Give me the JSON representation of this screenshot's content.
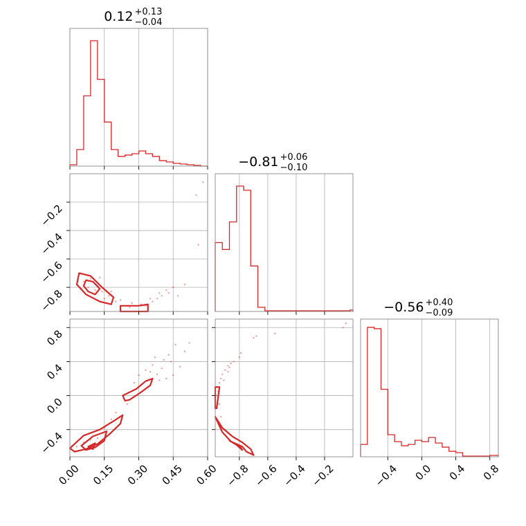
{
  "chart_data": {
    "type": "corner",
    "color": "#d62728",
    "parameters": [
      {
        "title_value": "0.12",
        "title_plus": "+0.13",
        "title_minus": "−0.04",
        "range": [
          0.0,
          0.6
        ],
        "ticks": [
          0.0,
          0.15,
          0.3,
          0.45,
          0.6
        ],
        "tick_labels": [
          "0.00",
          "0.15",
          "0.30",
          "0.45",
          "0.60"
        ],
        "hist_bin_edges": [
          0.0,
          0.03,
          0.06,
          0.09,
          0.12,
          0.15,
          0.18,
          0.21,
          0.24,
          0.27,
          0.3,
          0.33,
          0.36,
          0.39,
          0.42,
          0.45,
          0.48,
          0.51,
          0.54,
          0.57,
          0.6
        ],
        "hist_heights": [
          0.01,
          0.12,
          0.51,
          0.91,
          0.63,
          0.32,
          0.12,
          0.07,
          0.08,
          0.09,
          0.11,
          0.09,
          0.07,
          0.04,
          0.03,
          0.02,
          0.015,
          0.01,
          0.005,
          0.0
        ]
      },
      {
        "title_value": "−0.81",
        "title_plus": "+0.06",
        "title_minus": "−0.10",
        "range": [
          -0.97,
          0.0
        ],
        "ticks": [
          -0.8,
          -0.6,
          -0.4,
          -0.2
        ],
        "tick_labels": [
          "−0.8",
          "−0.6",
          "−0.4",
          "−0.2"
        ],
        "hist_bin_edges": [
          -0.97,
          -0.92,
          -0.87,
          -0.82,
          -0.77,
          -0.72,
          -0.67,
          -0.62,
          -0.57,
          -0.52,
          -0.47,
          -0.42,
          -0.37,
          -0.32,
          -0.27,
          -0.22,
          -0.17,
          -0.12,
          -0.07,
          -0.02,
          0.0
        ],
        "hist_heights": [
          0.5,
          0.45,
          0.65,
          0.91,
          0.88,
          0.33,
          0.03,
          0.005,
          0.005,
          0.005,
          0.005,
          0.005,
          0.005,
          0.005,
          0.005,
          0.005,
          0.005,
          0.005,
          0.005,
          0.01
        ]
      },
      {
        "title_value": "−0.56",
        "title_plus": "+0.40",
        "title_minus": "−0.09",
        "range": [
          -0.72,
          0.9
        ],
        "ticks": [
          -0.4,
          0.0,
          0.4,
          0.8
        ],
        "tick_labels": [
          "−0.4",
          "0.0",
          "0.4",
          "0.8"
        ],
        "hist_bin_edges": [
          -0.72,
          -0.64,
          -0.56,
          -0.48,
          -0.4,
          -0.32,
          -0.24,
          -0.16,
          -0.08,
          0.0,
          0.08,
          0.16,
          0.24,
          0.32,
          0.4,
          0.48,
          0.56,
          0.64,
          0.72,
          0.8,
          0.9
        ],
        "hist_heights": [
          0.09,
          0.94,
          0.93,
          0.49,
          0.16,
          0.11,
          0.08,
          0.09,
          0.12,
          0.11,
          0.14,
          0.1,
          0.07,
          0.04,
          0.03,
          0.005,
          0.005,
          0.005,
          0.005,
          0.01
        ]
      }
    ],
    "pairs": [
      {
        "x_param": 0,
        "y_param": 1,
        "contours": [
          {
            "level": "outer",
            "points": [
              [
                0.04,
                -0.7
              ],
              [
                0.09,
                -0.72
              ],
              [
                0.14,
                -0.8
              ],
              [
                0.19,
                -0.87
              ],
              [
                0.18,
                -0.92
              ],
              [
                0.13,
                -0.9
              ],
              [
                0.07,
                -0.85
              ],
              [
                0.03,
                -0.78
              ]
            ]
          },
          {
            "level": "inner",
            "points": [
              [
                0.07,
                -0.75
              ],
              [
                0.1,
                -0.76
              ],
              [
                0.13,
                -0.81
              ],
              [
                0.11,
                -0.85
              ],
              [
                0.08,
                -0.83
              ],
              [
                0.06,
                -0.79
              ]
            ]
          },
          {
            "level": "outer",
            "points": [
              [
                0.22,
                -0.93
              ],
              [
                0.3,
                -0.93
              ],
              [
                0.34,
                -0.92
              ],
              [
                0.34,
                -0.97
              ],
              [
                0.22,
                -0.97
              ]
            ]
          }
        ],
        "samples": [
          [
            0.09,
            -0.74
          ],
          [
            0.12,
            -0.79
          ],
          [
            0.06,
            -0.76
          ],
          [
            0.14,
            -0.83
          ],
          [
            0.17,
            -0.86
          ],
          [
            0.11,
            -0.82
          ],
          [
            0.08,
            -0.8
          ],
          [
            0.15,
            -0.88
          ],
          [
            0.2,
            -0.9
          ],
          [
            0.26,
            -0.94
          ],
          [
            0.31,
            -0.92
          ],
          [
            0.36,
            -0.9
          ],
          [
            0.4,
            -0.86
          ],
          [
            0.43,
            -0.84
          ],
          [
            0.45,
            -0.8
          ],
          [
            0.38,
            -0.88
          ],
          [
            0.33,
            -0.93
          ],
          [
            0.42,
            -0.82
          ],
          [
            0.5,
            -0.78
          ],
          [
            0.56,
            -0.5
          ],
          [
            0.55,
            -0.15
          ],
          [
            0.58,
            -0.06
          ],
          [
            0.05,
            -0.81
          ],
          [
            0.13,
            -0.73
          ],
          [
            0.18,
            -0.83
          ],
          [
            0.22,
            -0.89
          ],
          [
            0.27,
            -0.91
          ],
          [
            0.35,
            -0.88
          ],
          [
            0.39,
            -0.84
          ],
          [
            0.47,
            -0.86
          ]
        ]
      },
      {
        "x_param": 0,
        "y_param": 2,
        "contours": [
          {
            "level": "outer",
            "points": [
              [
                0.0,
                -0.62
              ],
              [
                0.06,
                -0.47
              ],
              [
                0.13,
                -0.4
              ],
              [
                0.19,
                -0.3
              ],
              [
                0.23,
                -0.23
              ],
              [
                0.22,
                -0.33
              ],
              [
                0.17,
                -0.46
              ],
              [
                0.12,
                -0.57
              ],
              [
                0.07,
                -0.63
              ],
              [
                0.02,
                -0.66
              ]
            ]
          },
          {
            "level": "inner",
            "points": [
              [
                0.05,
                -0.59
              ],
              [
                0.1,
                -0.48
              ],
              [
                0.16,
                -0.42
              ],
              [
                0.15,
                -0.53
              ],
              [
                0.11,
                -0.61
              ],
              [
                0.07,
                -0.64
              ]
            ]
          },
          {
            "level": "inner",
            "points": [
              [
                0.08,
                -0.6
              ],
              [
                0.11,
                -0.56
              ],
              [
                0.1,
                -0.63
              ]
            ]
          },
          {
            "level": "outer",
            "points": [
              [
                0.23,
                0.0
              ],
              [
                0.29,
                0.08
              ],
              [
                0.33,
                0.17
              ],
              [
                0.36,
                0.2
              ],
              [
                0.35,
                0.12
              ],
              [
                0.31,
                0.04
              ],
              [
                0.26,
                -0.05
              ],
              [
                0.24,
                -0.06
              ]
            ]
          }
        ],
        "samples": [
          [
            0.33,
            0.3
          ],
          [
            0.36,
            0.36
          ],
          [
            0.4,
            0.32
          ],
          [
            0.38,
            0.25
          ],
          [
            0.41,
            0.42
          ],
          [
            0.44,
            0.4
          ],
          [
            0.3,
            0.24
          ],
          [
            0.35,
            0.28
          ],
          [
            0.45,
            0.24
          ],
          [
            0.48,
            0.34
          ],
          [
            0.5,
            0.52
          ],
          [
            0.42,
            0.2
          ],
          [
            0.37,
            0.45
          ],
          [
            0.46,
            0.6
          ],
          [
            0.52,
            0.62
          ],
          [
            0.39,
            0.18
          ],
          [
            0.43,
            0.48
          ],
          [
            0.28,
            0.15
          ],
          [
            0.2,
            -0.2
          ],
          [
            0.18,
            -0.28
          ],
          [
            0.25,
            -0.1
          ],
          [
            0.06,
            -0.55
          ],
          [
            0.12,
            -0.5
          ],
          [
            0.09,
            -0.52
          ],
          [
            0.15,
            -0.38
          ],
          [
            0.03,
            -0.6
          ]
        ]
      },
      {
        "x_param": 1,
        "y_param": 2,
        "contours": [
          {
            "level": "outer",
            "points": [
              [
                -0.97,
                -0.25
              ],
              [
                -0.92,
                -0.43
              ],
              [
                -0.86,
                -0.54
              ],
              [
                -0.78,
                -0.6
              ],
              [
                -0.75,
                -0.66
              ],
              [
                -0.7,
                -0.7
              ],
              [
                -0.72,
                -0.63
              ],
              [
                -0.78,
                -0.55
              ],
              [
                -0.85,
                -0.48
              ],
              [
                -0.92,
                -0.38
              ]
            ]
          },
          {
            "level": "inner",
            "points": [
              [
                -0.87,
                -0.53
              ],
              [
                -0.82,
                -0.58
              ],
              [
                -0.78,
                -0.64
              ],
              [
                -0.8,
                -0.59
              ],
              [
                -0.85,
                -0.55
              ]
            ]
          },
          {
            "level": "outer",
            "points": [
              [
                -0.97,
                0.1
              ],
              [
                -0.94,
                0.1
              ],
              [
                -0.96,
                -0.15
              ],
              [
                -0.97,
                -0.15
              ]
            ]
          }
        ],
        "samples": [
          [
            -0.95,
            0.05
          ],
          [
            -0.94,
            0.15
          ],
          [
            -0.93,
            0.2
          ],
          [
            -0.92,
            0.25
          ],
          [
            -0.91,
            0.18
          ],
          [
            -0.9,
            0.3
          ],
          [
            -0.88,
            0.35
          ],
          [
            -0.86,
            0.38
          ],
          [
            -0.84,
            0.4
          ],
          [
            -0.8,
            0.45
          ],
          [
            -0.79,
            0.5
          ],
          [
            -0.7,
            0.68
          ],
          [
            -0.68,
            0.7
          ],
          [
            -0.55,
            0.73
          ],
          [
            -0.07,
            0.8
          ],
          [
            -0.05,
            0.85
          ],
          [
            -0.94,
            -0.1
          ],
          [
            -0.93,
            -0.25
          ],
          [
            -0.9,
            -0.4
          ],
          [
            -0.88,
            0.28
          ],
          [
            -0.87,
            0.33
          ],
          [
            -0.96,
            0.0
          ]
        ]
      }
    ]
  }
}
